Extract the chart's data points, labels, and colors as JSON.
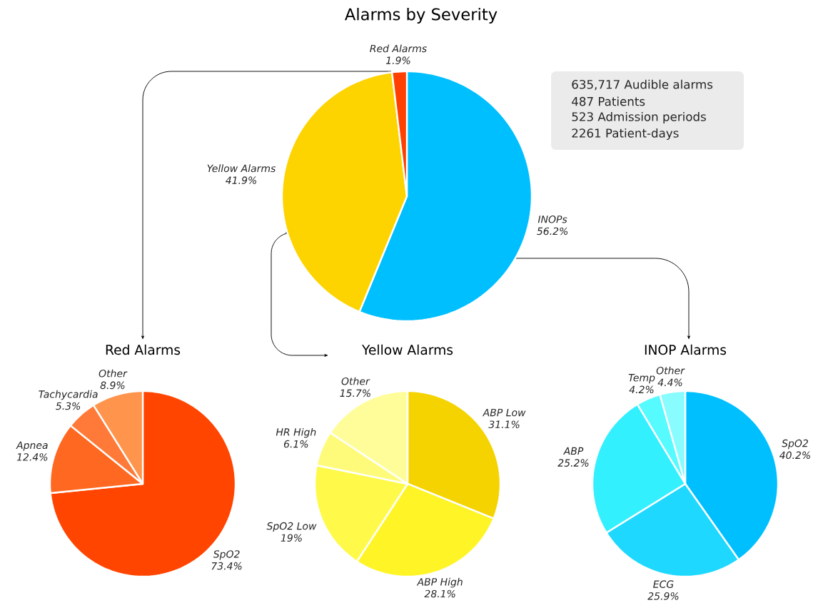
{
  "chart_data": [
    {
      "type": "pie",
      "title": "Alarms by Severity",
      "categories": [
        "INOPs",
        "Yellow Alarms",
        "Red Alarms"
      ],
      "values": [
        56.2,
        41.9,
        1.9
      ],
      "colors": [
        "#00bfff",
        "#fdd300",
        "#ff4000"
      ],
      "value_labels": [
        "56.2%",
        "41.9%",
        "1.9%"
      ]
    },
    {
      "type": "pie",
      "title": "Red Alarms",
      "categories": [
        "SpO2",
        "Apnea",
        "Tachycardia",
        "Other"
      ],
      "values": [
        73.4,
        12.4,
        5.3,
        8.9
      ],
      "colors": [
        "#ff4500",
        "#ff6820",
        "#ff7a38",
        "#ff944d"
      ],
      "value_labels": [
        "73.4%",
        "12.4%",
        "5.3%",
        "8.9%"
      ]
    },
    {
      "type": "pie",
      "title": "Yellow Alarms",
      "categories": [
        "ABP Low",
        "ABP High",
        "SpO2 Low",
        "HR High",
        "Other"
      ],
      "values": [
        31.1,
        28.1,
        19,
        6.1,
        15.7
      ],
      "colors": [
        "#f5d300",
        "#fff426",
        "#fffa4a",
        "#fffb7a",
        "#fffd99"
      ],
      "value_labels": [
        "31.1%",
        "28.1%",
        "19%",
        "6.1%",
        "15.7%"
      ]
    },
    {
      "type": "pie",
      "title": "INOP Alarms",
      "categories": [
        "SpO2",
        "ECG",
        "ABP",
        "Temp",
        "Other"
      ],
      "values": [
        40.2,
        25.9,
        25.2,
        4.2,
        4.4
      ],
      "colors": [
        "#00bfff",
        "#1ed8ff",
        "#33f0ff",
        "#55fbff",
        "#88fcff"
      ],
      "value_labels": [
        "40.2%",
        "25.9%",
        "25.2%",
        "4.2%",
        "4.4%"
      ]
    },
    {
      "type": "other",
      "annotations": [
        "635,717 Audible alarms",
        "487 Patients",
        "523 Admission periods",
        "2261 Patient-days"
      ]
    }
  ]
}
